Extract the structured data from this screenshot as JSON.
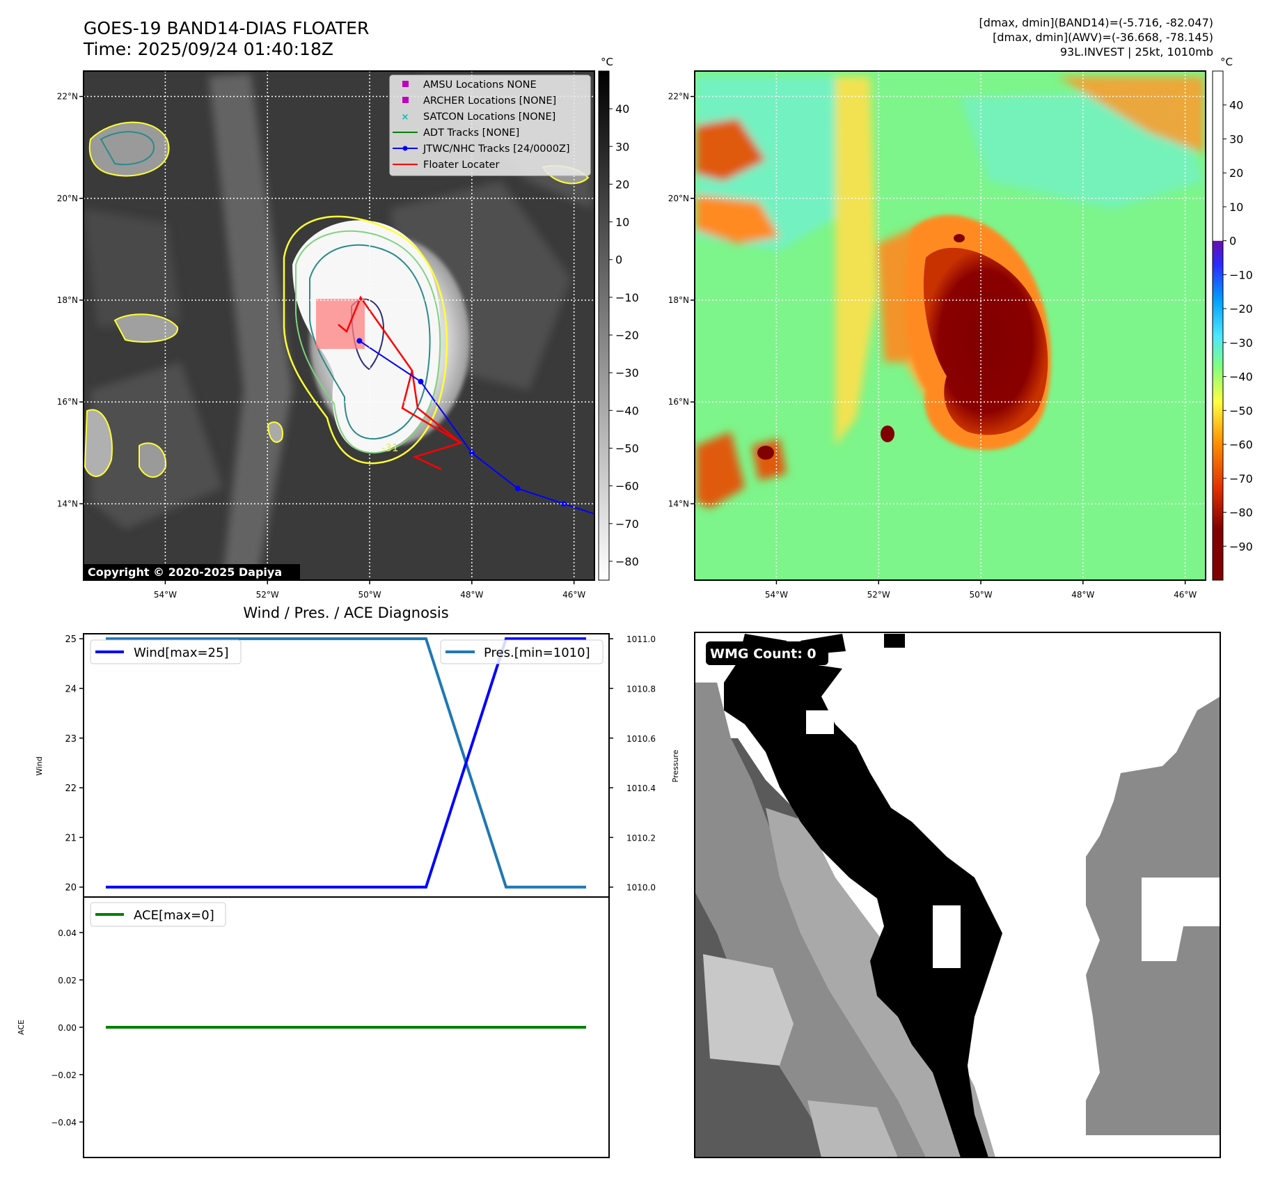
{
  "header": {
    "title_line1": "GOES-19 BAND14-DIAS FLOATER",
    "title_line2": "Time: 2025/09/24 01:40:18Z",
    "stats_line1": "[dmax, dmin](BAND14)=(-5.716, -82.047)",
    "stats_line2": "[dmax, dmin](AWV)=(-36.668, -78.145)",
    "stats_line3": "93L.INVEST | 25kt, 1010mb"
  },
  "maps": {
    "lat_labels": [
      "22°N",
      "20°N",
      "18°N",
      "16°N",
      "14°N"
    ],
    "lat_values": [
      22,
      20,
      18,
      16,
      14
    ],
    "lon_labels": [
      "54°W",
      "52°W",
      "50°W",
      "48°W",
      "46°W"
    ],
    "lon_values": [
      -54,
      -52,
      -50,
      -48,
      -46
    ],
    "extent": {
      "lon_min": -55.6,
      "lon_max": -45.6,
      "lat_min": 12.5,
      "lat_max": 22.5
    },
    "copyright": "Copyright © 2020-2025 Dapiya",
    "contour_label": "-31",
    "colorbar1": {
      "unit": "°C",
      "ticks": [
        40,
        30,
        20,
        10,
        0,
        -10,
        -20,
        -30,
        -40,
        -50,
        -60,
        -70,
        -80
      ],
      "tick_labels": [
        "40",
        "30",
        "20",
        "10",
        "0",
        "−10",
        "−20",
        "−30",
        "−40",
        "−50",
        "−60",
        "−70",
        "−80"
      ],
      "range": [
        -85,
        50
      ]
    },
    "colorbar2": {
      "unit": "°C",
      "ticks": [
        40,
        30,
        20,
        10,
        0,
        -10,
        -20,
        -30,
        -40,
        -50,
        -60,
        -70,
        -80,
        -90
      ],
      "tick_labels": [
        "40",
        "30",
        "20",
        "10",
        "0",
        "−10",
        "−20",
        "−30",
        "−40",
        "−50",
        "−60",
        "−70",
        "−80",
        "−90"
      ],
      "range": [
        -100,
        50
      ]
    },
    "legend": [
      {
        "label": "AMSU Locations NONE",
        "color": "#bf00bf",
        "marker": "square"
      },
      {
        "label": "ARCHER Locations [NONE]",
        "color": "#bf00bf",
        "marker": "square"
      },
      {
        "label": "SATCON Locations [NONE]",
        "color": "#00bfbf",
        "marker": "x"
      },
      {
        "label": "ADT Tracks [NONE]",
        "color": "#008000",
        "marker": "line"
      },
      {
        "label": "JTWC/NHC Tracks [24/0000Z]",
        "color": "#0000ff",
        "marker": "line-dot"
      },
      {
        "label": "Floater Locater",
        "color": "#ff0000",
        "marker": "line"
      }
    ],
    "track_points": [
      {
        "lon": -50.2,
        "lat": 17.2
      },
      {
        "lon": -49.0,
        "lat": 16.4
      },
      {
        "lon": -48.0,
        "lat": 15.0
      },
      {
        "lon": -47.1,
        "lat": 14.3
      },
      {
        "lon": -46.2,
        "lat": 14.0
      },
      {
        "lon": -45.6,
        "lat": 13.8
      }
    ]
  },
  "chart_data": [
    {
      "type": "line",
      "title": "Wind / Pres. / ACE Diagnosis",
      "x": [
        0,
        1,
        2,
        3,
        4,
        5,
        6
      ],
      "series": [
        {
          "name": "Wind[max=25]",
          "axis": "left",
          "color": "#0000ff",
          "values": [
            20,
            20,
            20,
            20,
            20,
            25,
            25
          ]
        },
        {
          "name": "Pres.[min=1010]",
          "axis": "right",
          "color": "#1f77b4",
          "values": [
            1011,
            1011,
            1011,
            1011,
            1011,
            1010,
            1010
          ]
        }
      ],
      "ylabel": "Wind",
      "ylabel_right": "Pressure",
      "ylim": [
        19.8,
        25.1
      ],
      "ylim_right": [
        1009.96,
        1011.02
      ],
      "yticks": [
        20,
        21,
        22,
        23,
        24,
        25
      ],
      "yticks_right": [
        1010.0,
        1010.2,
        1010.4,
        1010.6,
        1010.8,
        1011.0
      ],
      "yticks_right_labels": [
        "1010.0",
        "1010.2",
        "1010.4",
        "1010.6",
        "1010.8",
        "1011.0"
      ]
    },
    {
      "type": "line",
      "x": [
        0,
        1,
        2,
        3,
        4,
        5,
        6
      ],
      "series": [
        {
          "name": "ACE[max=0]",
          "color": "#008000",
          "values": [
            0,
            0,
            0,
            0,
            0,
            0,
            0
          ]
        }
      ],
      "ylabel": "ACE",
      "ylim": [
        -0.055,
        0.055
      ],
      "yticks": [
        0.04,
        0.02,
        0.0,
        -0.02,
        -0.04
      ],
      "ytick_labels": [
        "0.04",
        "0.02",
        "0.00",
        "−0.02",
        "−0.04"
      ]
    }
  ],
  "wmg": {
    "label": "WMG Count: 0"
  }
}
